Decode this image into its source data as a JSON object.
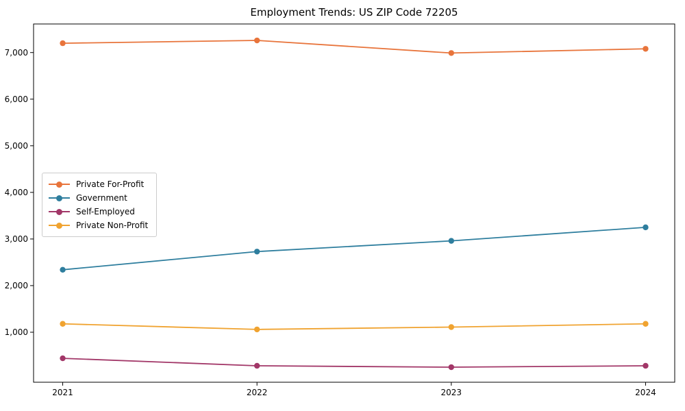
{
  "title": "Employment Trends: US ZIP Code 72205",
  "chart_data": {
    "type": "line",
    "x": [
      2021,
      2022,
      2023,
      2024
    ],
    "x_tick_labels": [
      "2021",
      "2022",
      "2023",
      "2024"
    ],
    "series": [
      {
        "name": "Private For-Profit",
        "color": "#E8743B",
        "values": [
          7200,
          7260,
          6990,
          7080
        ]
      },
      {
        "name": "Government",
        "color": "#2E7E9E",
        "values": [
          2340,
          2730,
          2960,
          3250
        ]
      },
      {
        "name": "Self-Employed",
        "color": "#A23768",
        "values": [
          440,
          280,
          250,
          280
        ]
      },
      {
        "name": "Private Non-Profit",
        "color": "#F0A330",
        "values": [
          1180,
          1060,
          1110,
          1180
        ]
      }
    ],
    "y_ticks": [
      1000,
      2000,
      3000,
      4000,
      5000,
      6000,
      7000
    ],
    "y_tick_labels": [
      "1,000",
      "2,000",
      "3,000",
      "4,000",
      "5,000",
      "6,000",
      "7,000"
    ],
    "xlim": [
      2020.85,
      2024.15
    ],
    "ylim": [
      -73,
      7613
    ],
    "xlabel": "",
    "ylabel": "",
    "grid": false,
    "legend_position": "center-left",
    "marker": "circle",
    "axis_color": "#000000",
    "background_color": "#ffffff"
  }
}
